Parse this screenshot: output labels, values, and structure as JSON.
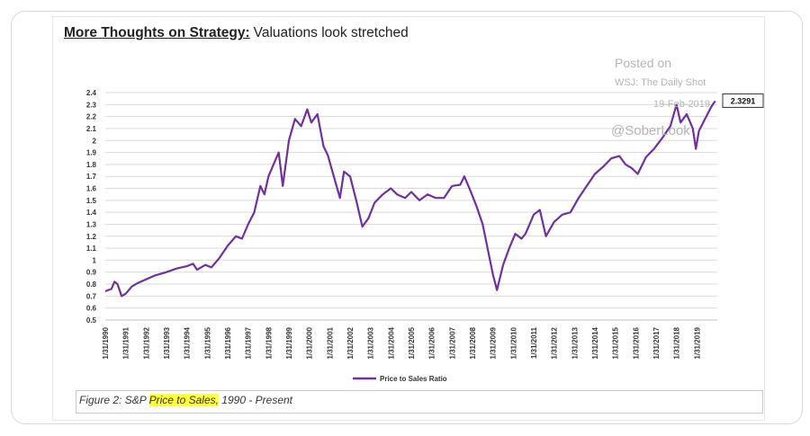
{
  "heading": {
    "bold_text": "More Thoughts on Strategy:",
    "rest_text": "Valuations look stretched"
  },
  "watermark": {
    "posted_on": "Posted on",
    "source": "WSJ: The Daily Shot",
    "date": "19-Feb-2019",
    "handle": "@SoberLook"
  },
  "caption": {
    "prefix": "Figure 2: S&P ",
    "highlight": "Price to Sales,",
    "suffix": " 1990 - Present",
    "highlight_color": "#ffff3a"
  },
  "chart_data": {
    "type": "line",
    "series": [
      {
        "name": "Price to Sales Ratio",
        "color": "#7030a0",
        "points": [
          [
            1990.0,
            0.74
          ],
          [
            1990.3,
            0.76
          ],
          [
            1990.45,
            0.82
          ],
          [
            1990.6,
            0.8
          ],
          [
            1990.8,
            0.7
          ],
          [
            1991.0,
            0.72
          ],
          [
            1991.3,
            0.78
          ],
          [
            1991.6,
            0.81
          ],
          [
            1992.0,
            0.84
          ],
          [
            1992.4,
            0.87
          ],
          [
            1993.0,
            0.9
          ],
          [
            1993.5,
            0.93
          ],
          [
            1994.0,
            0.95
          ],
          [
            1994.3,
            0.97
          ],
          [
            1994.5,
            0.92
          ],
          [
            1994.9,
            0.96
          ],
          [
            1995.2,
            0.94
          ],
          [
            1995.6,
            1.02
          ],
          [
            1996.0,
            1.12
          ],
          [
            1996.4,
            1.2
          ],
          [
            1996.7,
            1.18
          ],
          [
            1997.0,
            1.3
          ],
          [
            1997.3,
            1.4
          ],
          [
            1997.6,
            1.62
          ],
          [
            1997.8,
            1.55
          ],
          [
            1998.0,
            1.7
          ],
          [
            1998.3,
            1.82
          ],
          [
            1998.5,
            1.9
          ],
          [
            1998.7,
            1.62
          ],
          [
            1999.0,
            2.0
          ],
          [
            1999.3,
            2.18
          ],
          [
            1999.6,
            2.12
          ],
          [
            1999.9,
            2.26
          ],
          [
            2000.1,
            2.15
          ],
          [
            2000.4,
            2.22
          ],
          [
            2000.7,
            1.95
          ],
          [
            2000.9,
            1.88
          ],
          [
            2001.2,
            1.7
          ],
          [
            2001.5,
            1.52
          ],
          [
            2001.7,
            1.74
          ],
          [
            2002.0,
            1.7
          ],
          [
            2002.3,
            1.5
          ],
          [
            2002.6,
            1.28
          ],
          [
            2002.9,
            1.35
          ],
          [
            2003.2,
            1.48
          ],
          [
            2003.6,
            1.55
          ],
          [
            2004.0,
            1.6
          ],
          [
            2004.3,
            1.55
          ],
          [
            2004.7,
            1.52
          ],
          [
            2005.0,
            1.57
          ],
          [
            2005.4,
            1.5
          ],
          [
            2005.8,
            1.55
          ],
          [
            2006.2,
            1.52
          ],
          [
            2006.6,
            1.52
          ],
          [
            2007.0,
            1.62
          ],
          [
            2007.4,
            1.63
          ],
          [
            2007.6,
            1.7
          ],
          [
            2007.9,
            1.58
          ],
          [
            2008.2,
            1.45
          ],
          [
            2008.5,
            1.3
          ],
          [
            2008.8,
            1.05
          ],
          [
            2009.0,
            0.88
          ],
          [
            2009.2,
            0.75
          ],
          [
            2009.5,
            0.96
          ],
          [
            2009.8,
            1.1
          ],
          [
            2010.1,
            1.22
          ],
          [
            2010.4,
            1.18
          ],
          [
            2010.6,
            1.22
          ],
          [
            2011.0,
            1.38
          ],
          [
            2011.3,
            1.42
          ],
          [
            2011.6,
            1.2
          ],
          [
            2012.0,
            1.32
          ],
          [
            2012.4,
            1.38
          ],
          [
            2012.8,
            1.4
          ],
          [
            2013.2,
            1.52
          ],
          [
            2013.6,
            1.62
          ],
          [
            2014.0,
            1.72
          ],
          [
            2014.4,
            1.78
          ],
          [
            2014.8,
            1.85
          ],
          [
            2015.2,
            1.87
          ],
          [
            2015.5,
            1.8
          ],
          [
            2015.8,
            1.77
          ],
          [
            2016.1,
            1.72
          ],
          [
            2016.5,
            1.86
          ],
          [
            2016.9,
            1.93
          ],
          [
            2017.3,
            2.02
          ],
          [
            2017.7,
            2.12
          ],
          [
            2018.0,
            2.3
          ],
          [
            2018.2,
            2.15
          ],
          [
            2018.5,
            2.22
          ],
          [
            2018.8,
            2.1
          ],
          [
            2018.95,
            1.93
          ],
          [
            2019.1,
            2.08
          ],
          [
            2019.4,
            2.18
          ],
          [
            2019.7,
            2.28
          ],
          [
            2019.9,
            2.3291
          ]
        ]
      }
    ],
    "ylim": [
      0.5,
      2.4
    ],
    "yticks": [
      "0.5",
      "0.6",
      "0.7",
      "0.8",
      "0.9",
      "1",
      "1.1",
      "1.2",
      "1.3",
      "1.4",
      "1.5",
      "1.6",
      "1.7",
      "1.8",
      "1.9",
      "2",
      "2.1",
      "2.2",
      "2.3",
      "2.4"
    ],
    "xticks": [
      "1/31/1990",
      "1/31/1991",
      "1/31/1992",
      "1/31/1993",
      "1/31/1994",
      "1/31/1995",
      "1/31/1996",
      "1/31/1997",
      "1/31/1998",
      "1/31/1999",
      "1/31/2000",
      "1/31/2001",
      "1/31/2002",
      "1/31/2003",
      "1/31/2004",
      "1/31/2005",
      "1/31/2006",
      "1/31/2007",
      "1/31/2008",
      "1/31/2009",
      "1/31/2010",
      "1/31/2011",
      "1/31/2012",
      "1/31/2013",
      "1/31/2014",
      "1/31/2015",
      "1/31/2016",
      "1/31/2017",
      "1/31/2018",
      "1/31/2019"
    ],
    "last_value_label": "2.3291",
    "legend": "Price to Sales Ratio",
    "legend_position": "bottom",
    "grid": true
  }
}
